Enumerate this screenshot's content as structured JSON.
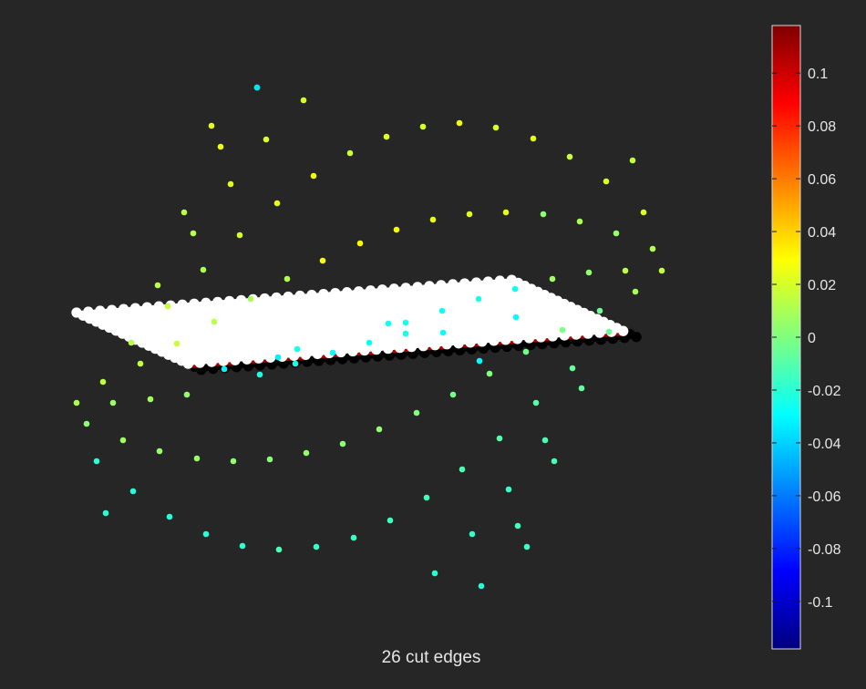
{
  "chart_data": {
    "type": "scatter",
    "caption": "26 cut edges",
    "colorbar": {
      "colormap": "jet",
      "clim": [
        -0.118,
        0.118
      ],
      "ticks": [
        0.1,
        0.08,
        0.06,
        0.04,
        0.02,
        0,
        -0.02,
        -0.04,
        -0.06,
        -0.08,
        -0.1
      ],
      "tick_labels": [
        "0.1",
        "0.08",
        "0.06",
        "0.04",
        "0.02",
        "0",
        "-0.02",
        "-0.04",
        "-0.06",
        "-0.08",
        "-0.1"
      ]
    },
    "grid": false,
    "background": "#262626",
    "node_colors": {
      "upper_half": "#ffffff",
      "lower_half": "#000000",
      "cut_edges": "#b00000"
    },
    "series": [
      {
        "values": [
          0.022,
          0.019,
          0.023,
          0.021,
          0.025,
          0.018,
          0.024,
          0.02,
          0.026,
          0.021,
          0.023,
          0.017,
          0.02,
          0.015,
          0.022,
          0.011,
          0.016,
          0.009,
          0.013,
          0.006,
          0.01,
          0.004,
          0.007,
          0.003,
          0.024,
          0.022,
          0.025,
          0.027,
          0.028,
          0.027,
          0.026,
          0.024,
          0.022,
          0.02,
          0.015,
          0.012,
          0.01,
          0.013,
          0.011,
          0.009,
          0.016,
          0.014,
          0.012,
          0.017,
          0.015,
          0.014,
          0.01,
          0.006,
          0.008,
          0.004,
          0.003,
          0.007,
          0.005,
          0.006,
          0.004,
          0.002,
          0.005,
          0.003,
          0.004,
          0.001,
          -0.002,
          0.001,
          -0.003,
          -0.001,
          -0.004,
          -0.005,
          -0.006,
          -0.008,
          -0.009,
          -0.01,
          -0.012,
          -0.013,
          -0.011,
          -0.014,
          -0.015,
          -0.016,
          -0.017,
          -0.012,
          -0.018,
          -0.02,
          -0.021,
          -0.022,
          -0.02,
          -0.019,
          -0.017,
          -0.015,
          -0.016,
          -0.018,
          -0.02,
          -0.021,
          -0.024,
          -0.026,
          -0.023,
          -0.027,
          -0.025,
          -0.022,
          -0.028,
          -0.029,
          -0.03,
          -0.031,
          -0.029,
          -0.027,
          -0.025,
          -0.024,
          -0.026,
          -0.033,
          -0.036
        ]
      }
    ]
  }
}
